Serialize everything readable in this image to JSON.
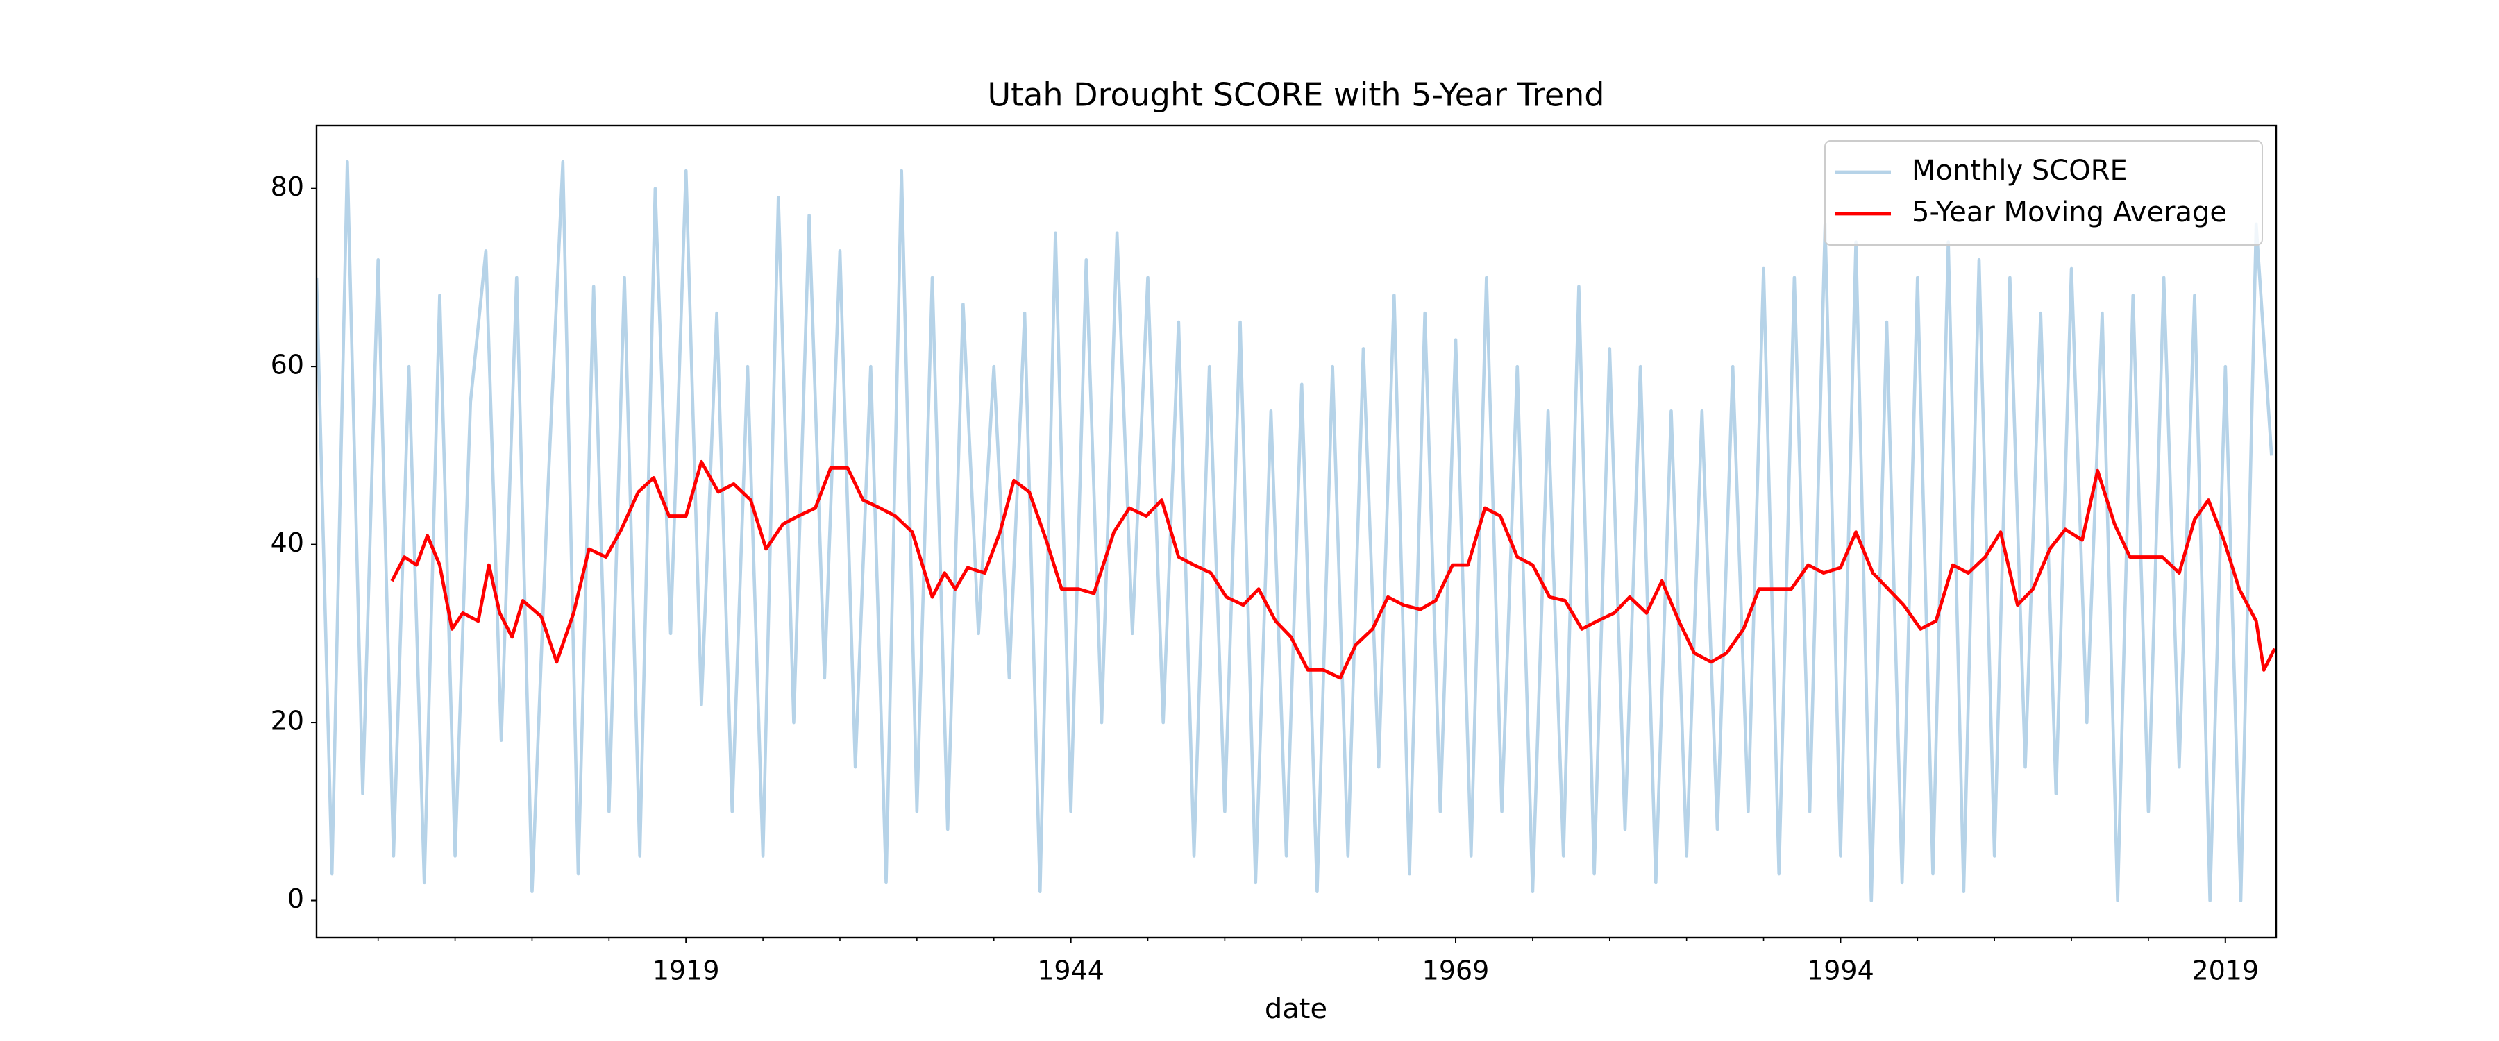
{
  "chart_data": {
    "type": "line",
    "title": "Utah Drought SCORE with 5-Year Trend",
    "x_label": "date",
    "xlim": [
      1895,
      2022.3
    ],
    "xticks": [
      1919,
      1944,
      1969,
      1994,
      2019
    ],
    "xminorticks": [
      1899,
      1904,
      1909,
      1914,
      1924,
      1929,
      1934,
      1939,
      1949,
      1954,
      1959,
      1964,
      1974,
      1979,
      1984,
      1989,
      1999,
      2004,
      2009,
      2014
    ],
    "ylim": [
      -4.17,
      87.07
    ],
    "yticks": [
      0,
      20,
      40,
      60,
      80
    ],
    "grid": false,
    "legend": "upper right",
    "series": [
      {
        "name": "Monthly SCORE",
        "color": "#b6d3e8",
        "x": [
          1895,
          1896,
          1897,
          1898,
          1899,
          1900,
          1901,
          1902,
          1903,
          1904,
          1905,
          1906,
          1907,
          1908,
          1909,
          1910,
          1911,
          1912,
          1913,
          1914,
          1915,
          1916,
          1917,
          1918,
          1919,
          1920,
          1921,
          1922,
          1923,
          1924,
          1925,
          1926,
          1927,
          1928,
          1929,
          1930,
          1931,
          1932,
          1933,
          1934,
          1935,
          1936,
          1937,
          1938,
          1939,
          1940,
          1941,
          1942,
          1943,
          1944,
          1945,
          1946,
          1947,
          1948,
          1949,
          1950,
          1951,
          1952,
          1953,
          1954,
          1955,
          1956,
          1957,
          1958,
          1959,
          1960,
          1961,
          1962,
          1963,
          1964,
          1965,
          1966,
          1967,
          1968,
          1969,
          1970,
          1971,
          1972,
          1973,
          1974,
          1975,
          1976,
          1977,
          1978,
          1979,
          1980,
          1981,
          1982,
          1983,
          1984,
          1985,
          1986,
          1987,
          1988,
          1989,
          1990,
          1991,
          1992,
          1993,
          1994,
          1995,
          1996,
          1997,
          1998,
          1999,
          2000,
          2001,
          2002,
          2003,
          2004,
          2005,
          2006,
          2007,
          2008,
          2009,
          2010,
          2011,
          2012,
          2013,
          2014,
          2015,
          2016,
          2017,
          2018,
          2019,
          2020,
          2021,
          2022
        ],
        "values": [
          70,
          3,
          83,
          12,
          72,
          5,
          60,
          2,
          68,
          5,
          56,
          73,
          18,
          70,
          1,
          45,
          83,
          3,
          69,
          10,
          70,
          5,
          80,
          30,
          82,
          22,
          66,
          10,
          60,
          5,
          79,
          20,
          77,
          25,
          73,
          15,
          60,
          2,
          82,
          10,
          70,
          8,
          67,
          30,
          60,
          25,
          66,
          1,
          75,
          10,
          72,
          20,
          75,
          30,
          70,
          20,
          65,
          5,
          60,
          10,
          65,
          2,
          55,
          5,
          58,
          1,
          60,
          5,
          62,
          15,
          68,
          3,
          66,
          10,
          63,
          5,
          70,
          10,
          60,
          1,
          55,
          5,
          69,
          3,
          62,
          8,
          60,
          2,
          55,
          5,
          55,
          8,
          60,
          10,
          71,
          3,
          70,
          10,
          76,
          5,
          74,
          0,
          65,
          2,
          70,
          3,
          74,
          1,
          72,
          5,
          70,
          15,
          66,
          12,
          71,
          20,
          66,
          0,
          68,
          10,
          70,
          15,
          68,
          0,
          60,
          0,
          76,
          50
        ]
      },
      {
        "name": "5-Year Moving Average",
        "color": "#ff0000",
        "x": [
          1899.9,
          1900.7,
          1901.5,
          1902.2,
          1903,
          1903.8,
          1904.5,
          1905.5,
          1906.2,
          1906.9,
          1907.7,
          1908.4,
          1909.6,
          1910.6,
          1911.7,
          1912.7,
          1913.8,
          1914.8,
          1915.9,
          1916.9,
          1917.9,
          1919,
          1920,
          1921.1,
          1922.1,
          1923.2,
          1924.2,
          1925.3,
          1926.3,
          1927.4,
          1928.4,
          1929.5,
          1930.5,
          1931.6,
          1932.6,
          1933.7,
          1935,
          1935.8,
          1936.5,
          1937.3,
          1938.4,
          1939.4,
          1940.3,
          1941.3,
          1942.4,
          1943.4,
          1944.5,
          1945.5,
          1946.8,
          1947.8,
          1948.9,
          1949.9,
          1951,
          1952,
          1953.1,
          1954.1,
          1955.2,
          1956.2,
          1957.3,
          1958.3,
          1959.4,
          1960.4,
          1961.5,
          1962.5,
          1963.6,
          1964.6,
          1965.6,
          1966.7,
          1967.7,
          1968.8,
          1969.8,
          1970.9,
          1971.9,
          1973,
          1974,
          1975.1,
          1976.1,
          1977.2,
          1978.2,
          1979.3,
          1980.3,
          1981.4,
          1982.4,
          1983.5,
          1984.5,
          1985.6,
          1986.6,
          1987.7,
          1988.7,
          1989.8,
          1990.8,
          1991.9,
          1992.9,
          1994,
          1995,
          1996.1,
          1997.1,
          1998.1,
          1999.2,
          2000.2,
          2001.3,
          2002.3,
          2003.4,
          2004.4,
          2005.5,
          2006.5,
          2007.6,
          2008.6,
          2009.7,
          2010.7,
          2011.8,
          2012.8,
          2013.9,
          2014.9,
          2016,
          2017,
          2017.9,
          2018.9,
          2019.9,
          2021,
          2021.5,
          2022.2
        ],
        "values": [
          35.9,
          38.6,
          37.7,
          41,
          37.7,
          30.5,
          32.3,
          31.4,
          37.7,
          32.3,
          29.6,
          33.7,
          31.9,
          26.8,
          32.3,
          39.5,
          38.6,
          41.7,
          45.9,
          47.5,
          43.2,
          43.2,
          49.3,
          45.9,
          46.8,
          45,
          39.5,
          42.3,
          43.2,
          44.1,
          48.6,
          48.6,
          45,
          44.1,
          43.2,
          41.4,
          34.1,
          36.8,
          35,
          37.4,
          36.8,
          41.4,
          47.2,
          45.9,
          40.5,
          35,
          35,
          34.5,
          41.4,
          44.1,
          43.2,
          45,
          38.6,
          37.7,
          36.8,
          34.1,
          33.2,
          35,
          31.4,
          29.6,
          25.9,
          25.9,
          25,
          28.7,
          30.5,
          34.1,
          33.2,
          32.7,
          33.7,
          37.7,
          37.7,
          44.1,
          43.2,
          38.6,
          37.7,
          34.1,
          33.7,
          30.5,
          31.4,
          32.3,
          34.1,
          32.3,
          35.9,
          31.4,
          27.8,
          26.8,
          27.8,
          30.5,
          35,
          35,
          35,
          37.7,
          36.8,
          37.4,
          41.4,
          36.8,
          35,
          33.2,
          30.5,
          31.4,
          37.7,
          36.8,
          38.6,
          41.4,
          33.2,
          35,
          39.5,
          41.7,
          40.5,
          48.3,
          42.3,
          38.6,
          38.6,
          38.6,
          36.8,
          42.8,
          45,
          40.5,
          35,
          31.4,
          25.9,
          28.3
        ]
      }
    ]
  }
}
